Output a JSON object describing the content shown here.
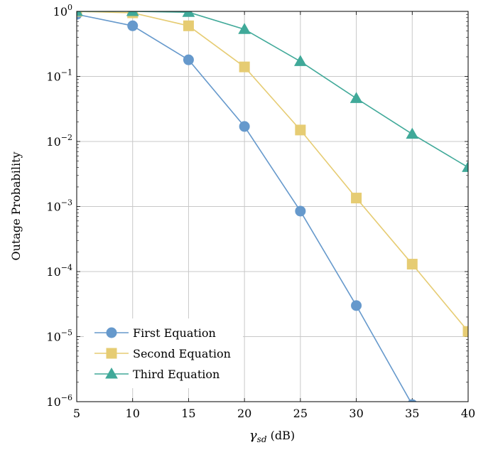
{
  "chart_data": {
    "type": "line",
    "xlabel_main": "γ",
    "xlabel_sub": "sd",
    "xlabel_unit": " (dB)",
    "ylabel": "Outage Probability",
    "xlim": [
      5,
      40
    ],
    "ylim_log10": [
      -6,
      0
    ],
    "yscale": "log",
    "grid": true,
    "legend_position": "bottom-left",
    "x_ticks": [
      "5",
      "10",
      "15",
      "20",
      "25",
      "30",
      "35",
      "40"
    ],
    "y_tick_exponents": [
      "0",
      "−1",
      "−2",
      "−3",
      "−4",
      "−5",
      "−6"
    ],
    "y_tick_base": "10",
    "series": [
      {
        "name": "First Equation",
        "color": "#6699cc",
        "marker": "circle",
        "x": [
          5,
          10,
          15,
          20,
          25,
          30,
          35
        ],
        "y": [
          0.9,
          0.6,
          0.18,
          0.017,
          0.00085,
          3e-05,
          9e-07
        ]
      },
      {
        "name": "Second Equation",
        "color": "#e6cc73",
        "marker": "square",
        "x": [
          5,
          10,
          15,
          20,
          25,
          30,
          35,
          40
        ],
        "y": [
          1.0,
          0.95,
          0.6,
          0.14,
          0.015,
          0.00135,
          0.00013,
          1.2e-05
        ]
      },
      {
        "name": "Third Equation",
        "color": "#40a999",
        "marker": "triangle",
        "x": [
          5,
          10,
          15,
          20,
          25,
          30,
          35,
          40
        ],
        "y": [
          1.0,
          1.0,
          0.97,
          0.53,
          0.17,
          0.046,
          0.013,
          0.004
        ]
      }
    ]
  }
}
